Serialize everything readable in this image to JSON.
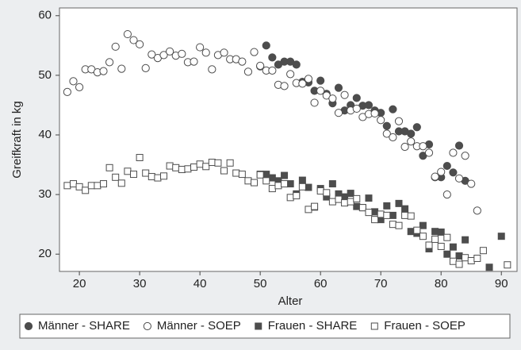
{
  "chart_data": {
    "type": "scatter",
    "xlabel": "Alter",
    "ylabel": "Greifkraft in kg",
    "xlim": [
      16.7,
      92.6
    ],
    "ylim": [
      17.1,
      61.3
    ],
    "xticks": [
      20,
      30,
      40,
      50,
      60,
      70,
      80,
      90
    ],
    "yticks": [
      20,
      30,
      40,
      50,
      60
    ],
    "grid": false,
    "legend_position": "bottom",
    "series": [
      {
        "name": "Männer - SHARE",
        "color": "#4d4d4d",
        "marker": "circle",
        "filled": true,
        "x": [
          50,
          51,
          52,
          53,
          54,
          55,
          56,
          57,
          58,
          59,
          60,
          61,
          62,
          63,
          64,
          65,
          66,
          67,
          68,
          69,
          70,
          71,
          72,
          73,
          74,
          75,
          76,
          77,
          78,
          79,
          80,
          81,
          82,
          83,
          84
        ],
        "values": [
          51.5,
          55,
          53,
          51.8,
          52.3,
          52.3,
          51.8,
          48.9,
          48.8,
          47.4,
          49.1,
          46.9,
          45.3,
          47.9,
          44.1,
          45,
          46.2,
          44.9,
          45,
          44.1,
          43.7,
          41.5,
          44.3,
          40.6,
          40.6,
          40.2,
          41.3,
          36.5,
          38.4,
          32.9,
          32.9,
          34.8,
          33.7,
          38.2,
          32.3
        ]
      },
      {
        "name": "Männer - SOEP",
        "color": "#4d4d4d",
        "marker": "circle",
        "filled": false,
        "x": [
          18,
          19,
          20,
          21,
          22,
          23,
          24,
          25,
          26,
          27,
          28,
          29,
          30,
          31,
          32,
          33,
          34,
          35,
          36,
          37,
          38,
          39,
          40,
          41,
          42,
          43,
          44,
          45,
          46,
          47,
          48,
          49,
          50,
          51,
          52,
          53,
          54,
          55,
          56,
          57,
          58,
          59,
          60,
          61,
          62,
          63,
          64,
          65,
          66,
          67,
          68,
          69,
          70,
          71,
          72,
          73,
          74,
          75,
          76,
          77,
          78,
          79,
          80,
          81,
          82,
          83,
          84,
          85,
          86
        ],
        "values": [
          47.2,
          49,
          48,
          51,
          51,
          50.5,
          50.7,
          52.2,
          54.8,
          51.1,
          56.9,
          55.9,
          55.2,
          51.2,
          53.5,
          52.9,
          53.4,
          54,
          53.3,
          53.6,
          52.2,
          52.3,
          54.7,
          53.8,
          51,
          53.4,
          53.8,
          52.7,
          52.7,
          52.3,
          50.6,
          53.9,
          51.6,
          50.8,
          50.8,
          48.4,
          48.2,
          50.2,
          48.7,
          48.6,
          49.4,
          45.4,
          47.4,
          46.6,
          46.1,
          43.7,
          46.7,
          44.1,
          44.4,
          43,
          43.5,
          43.6,
          42.5,
          40.2,
          39.6,
          42.3,
          38,
          38.9,
          38.1,
          38.1,
          37,
          33,
          33.8,
          30,
          37,
          32.7,
          36.5,
          31.8,
          27.3
        ]
      },
      {
        "name": "Frauen - SHARE",
        "color": "#4d4d4d",
        "marker": "square",
        "filled": true,
        "x": [
          50,
          51,
          52,
          53,
          54,
          55,
          56,
          57,
          58,
          59,
          60,
          61,
          62,
          63,
          64,
          65,
          66,
          67,
          68,
          69,
          70,
          71,
          72,
          73,
          74,
          75,
          76,
          77,
          78,
          79,
          80,
          81,
          82,
          83,
          84,
          88,
          90
        ],
        "values": [
          33.4,
          33.4,
          32.8,
          32.3,
          33.2,
          31.8,
          30.1,
          32.4,
          31.2,
          27.9,
          31,
          29.6,
          31.8,
          30.1,
          29.6,
          30.2,
          28,
          27.8,
          29.4,
          27.1,
          25.8,
          28.1,
          26.5,
          28.5,
          27.6,
          23.8,
          23.5,
          24.8,
          20.9,
          23.8,
          23.7,
          20,
          21.2,
          19.7,
          22.4,
          17.8,
          23
        ]
      },
      {
        "name": "Frauen - SOEP",
        "color": "#4d4d4d",
        "marker": "square",
        "filled": false,
        "x": [
          18,
          19,
          20,
          21,
          22,
          23,
          24,
          25,
          26,
          27,
          28,
          29,
          30,
          31,
          32,
          33,
          34,
          35,
          36,
          37,
          38,
          39,
          40,
          41,
          42,
          43,
          44,
          45,
          46,
          47,
          48,
          49,
          50,
          51,
          52,
          53,
          54,
          55,
          56,
          57,
          58,
          59,
          60,
          61,
          62,
          63,
          64,
          65,
          66,
          67,
          68,
          69,
          70,
          71,
          72,
          73,
          74,
          75,
          76,
          77,
          78,
          79,
          80,
          81,
          82,
          83,
          84,
          85,
          86,
          87,
          91
        ],
        "values": [
          31.5,
          31.8,
          31.3,
          30.7,
          31.5,
          31.5,
          31.8,
          34.5,
          32.9,
          31.9,
          33.9,
          33.4,
          36.2,
          33.6,
          33,
          32.8,
          33.1,
          34.8,
          34.5,
          34.2,
          34.3,
          34.6,
          35.1,
          34.7,
          35.4,
          35.3,
          34,
          35.3,
          33.6,
          33.4,
          32.3,
          32,
          33.3,
          32.3,
          31,
          31.5,
          31.8,
          29.5,
          29.8,
          31.3,
          27.5,
          28,
          30.6,
          30.3,
          28.8,
          29.2,
          28.6,
          28.8,
          29.3,
          27.8,
          27,
          25.8,
          26.7,
          26.5,
          25,
          24.8,
          26.5,
          26.4,
          24,
          23,
          21.5,
          22.5,
          21.3,
          22.8,
          18.8,
          18.3,
          19.4,
          18.9,
          19.3,
          20.6,
          18.2
        ]
      }
    ]
  }
}
